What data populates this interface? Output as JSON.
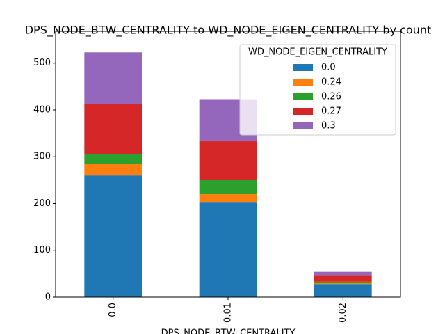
{
  "chart_data": {
    "type": "stacked_bar",
    "title": "DPS_NODE_BTW_CENTRALITY to WD_NODE_EIGEN_CENTRALITY by count",
    "x_label": "DPS_NODE_BTW_CENTRALITY",
    "legend_title": "WD_NODE_EIGEN_CENTRALITY",
    "legend_position": "upper right",
    "categories": [
      "0.0",
      "0.01",
      "0.02"
    ],
    "series": [
      {
        "name": "0.0",
        "color": "#1f77b4",
        "values": [
          260,
          202,
          28
        ]
      },
      {
        "name": "0.24",
        "color": "#ff7f0e",
        "values": [
          24,
          18,
          3
        ]
      },
      {
        "name": "0.26",
        "color": "#2ca02c",
        "values": [
          22,
          31,
          2
        ]
      },
      {
        "name": "0.27",
        "color": "#d62728",
        "values": [
          107,
          82,
          14
        ]
      },
      {
        "name": "0.3",
        "color": "#9467bd",
        "values": [
          110,
          90,
          7
        ]
      }
    ],
    "ylim": [
      0,
      568
    ],
    "yticks": [
      0,
      100,
      200,
      300,
      400,
      500
    ]
  }
}
